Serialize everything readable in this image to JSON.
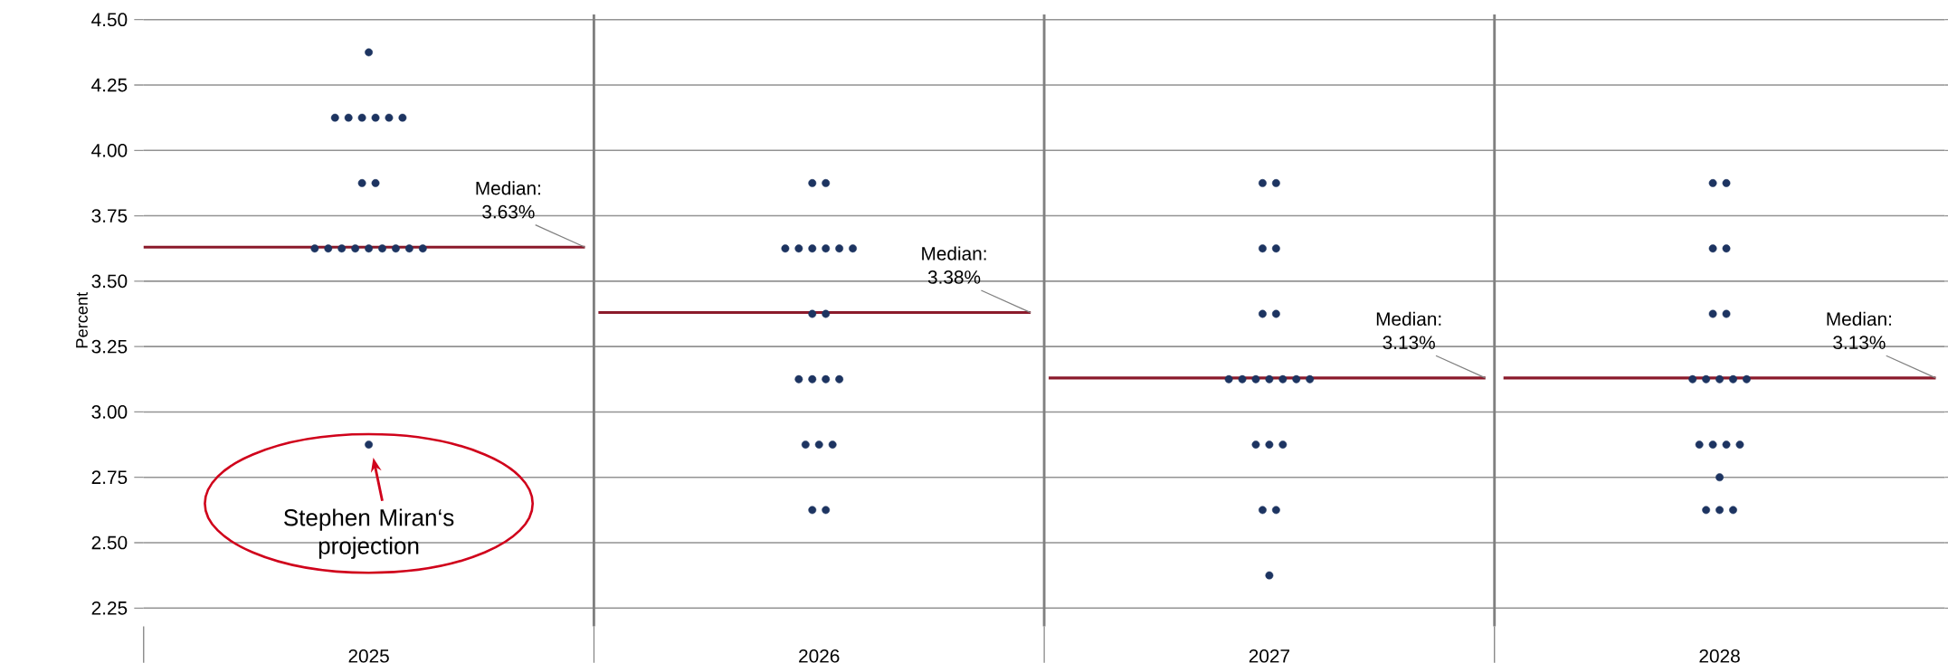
{
  "chart_data": {
    "type": "scatter",
    "ylabel": "Percent",
    "xlim": [
      2024.5,
      2028.5
    ],
    "xticks": [
      2025,
      2026,
      2027,
      2028
    ],
    "ylim": [
      2.18,
      4.52
    ],
    "yticks": [
      {
        "value": 2.25,
        "label": "2.25"
      },
      {
        "value": 2.5,
        "label": "2.50"
      },
      {
        "value": 2.75,
        "label": "2.75"
      },
      {
        "value": 3.0,
        "label": "3.00"
      },
      {
        "value": 3.25,
        "label": "3.25"
      },
      {
        "value": 3.5,
        "label": "3.50"
      },
      {
        "value": 3.75,
        "label": "3.75"
      },
      {
        "value": 4.0,
        "label": "4.00"
      },
      {
        "value": 4.25,
        "label": "4.25"
      },
      {
        "value": 4.5,
        "label": "4.50"
      }
    ],
    "grid": "y",
    "series": [
      {
        "color": "#1d3461",
        "marker": "circle",
        "x": [
          2025,
          2024.925,
          2024.955,
          2024.985,
          2025.015,
          2025.045,
          2025.075,
          2024.985,
          2025.015,
          2024.88,
          2024.91,
          2024.94,
          2024.97,
          2025,
          2025.03,
          2025.06,
          2025.09,
          2025.12,
          2025,
          2025.985,
          2026.015,
          2025.925,
          2025.955,
          2025.985,
          2026.015,
          2026.045,
          2026.075,
          2025.985,
          2026.015,
          2025.955,
          2025.985,
          2026.015,
          2026.045,
          2025.97,
          2026,
          2026.03,
          2025.985,
          2026.015,
          2026.985,
          2027.015,
          2026.985,
          2027.015,
          2026.985,
          2027.015,
          2026.91,
          2026.94,
          2026.97,
          2027,
          2027.03,
          2027.06,
          2027.09,
          2026.97,
          2027,
          2027.03,
          2026.985,
          2027.015,
          2027,
          2027.985,
          2028.015,
          2027.985,
          2028.015,
          2027.985,
          2028.015,
          2027.94,
          2027.97,
          2028,
          2028.03,
          2028.06,
          2027.955,
          2027.985,
          2028.015,
          2028.045,
          2028,
          2027.97,
          2028,
          2028.03
        ],
        "values": [
          4.375,
          4.125,
          4.125,
          4.125,
          4.125,
          4.125,
          4.125,
          3.875,
          3.875,
          3.625,
          3.625,
          3.625,
          3.625,
          3.625,
          3.625,
          3.625,
          3.625,
          3.625,
          2.875,
          3.875,
          3.875,
          3.625,
          3.625,
          3.625,
          3.625,
          3.625,
          3.625,
          3.375,
          3.375,
          3.125,
          3.125,
          3.125,
          3.125,
          2.875,
          2.875,
          2.875,
          2.625,
          2.625,
          3.875,
          3.875,
          3.625,
          3.625,
          3.375,
          3.375,
          3.125,
          3.125,
          3.125,
          3.125,
          3.125,
          3.125,
          3.125,
          2.875,
          2.875,
          2.875,
          2.625,
          2.625,
          2.375,
          3.875,
          3.875,
          3.625,
          3.625,
          3.375,
          3.375,
          3.125,
          3.125,
          3.125,
          3.125,
          3.125,
          2.875,
          2.875,
          2.875,
          2.875,
          2.75,
          2.625,
          2.625,
          2.625
        ]
      },
      {
        "type": "line",
        "color": "#8b1a2b",
        "x": [
          2024.5,
          2025.48
        ],
        "values": [
          3.63,
          3.63
        ]
      },
      {
        "type": "line",
        "color": "#8b1a2b",
        "x": [
          2025.51,
          2026.47
        ],
        "values": [
          3.38,
          3.38
        ]
      },
      {
        "type": "line",
        "color": "#8b1a2b",
        "x": [
          2026.51,
          2027.48
        ],
        "values": [
          3.13,
          3.13
        ]
      },
      {
        "type": "line",
        "color": "#8b1a2b",
        "x": [
          2027.52,
          2028.48
        ],
        "values": [
          3.13,
          3.13
        ]
      }
    ],
    "ref_lines": [
      {
        "axis": "x",
        "value": 2025.5,
        "color": "#808080"
      },
      {
        "axis": "x",
        "value": 2026.5,
        "color": "#808080"
      },
      {
        "axis": "x",
        "value": 2027.5,
        "color": "#808080"
      }
    ],
    "annotations": [
      {
        "text": "Median: 3.63%",
        "x": 2025.48,
        "y": 3.63
      },
      {
        "text": "Median: 3.38%",
        "x": 2026.47,
        "y": 3.38
      },
      {
        "text": "Median: 3.13%",
        "x": 2027.48,
        "y": 3.13
      },
      {
        "text": "Median: 3.13%",
        "x": 2028.48,
        "y": 3.13
      },
      {
        "text": "Stephen Miran‘s projection",
        "x": 2025,
        "y": 2.875
      }
    ]
  }
}
